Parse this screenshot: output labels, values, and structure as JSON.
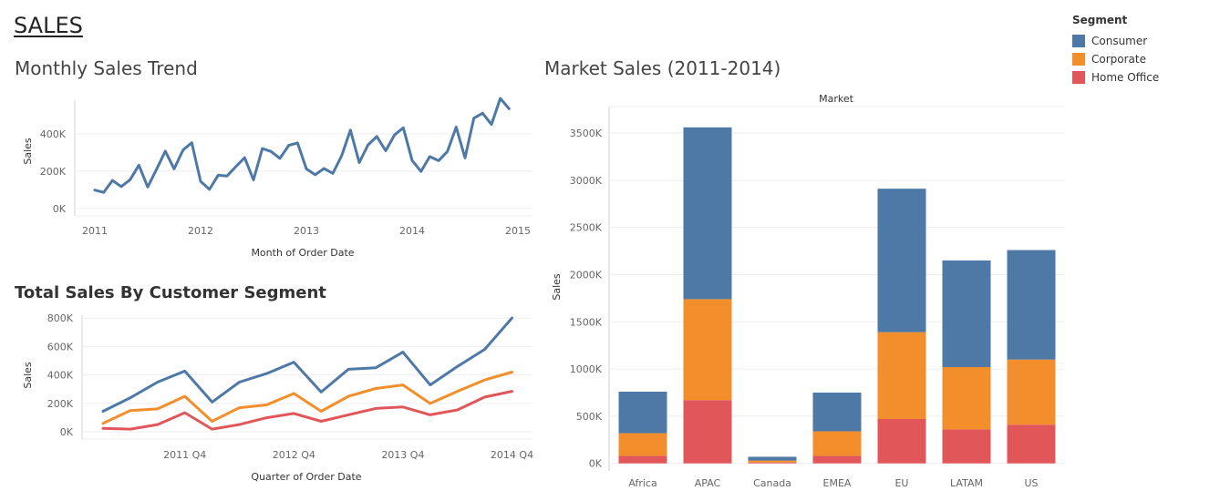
{
  "dashboard": {
    "title": "SALES"
  },
  "colors": {
    "consumer": "#4e79a7",
    "corporate": "#f28e2b",
    "home_office": "#e15759",
    "grid": "#ededed",
    "axis": "#d0d0d0"
  },
  "legend": {
    "title": "Segment",
    "items": [
      {
        "label": "Consumer",
        "color": "#4e79a7"
      },
      {
        "label": "Corporate",
        "color": "#f28e2b"
      },
      {
        "label": "Home Office",
        "color": "#e15759"
      }
    ]
  },
  "titles": {
    "monthly": "Monthly Sales Trend",
    "segment": "Total Sales By Customer Segment",
    "market": "Market Sales (2011-2014)"
  },
  "chart_data": [
    {
      "type": "line",
      "title": "Monthly Sales Trend",
      "xlabel": "Month of Order Date",
      "ylabel": "Sales",
      "x_ticks": [
        "2011",
        "2012",
        "2013",
        "2014",
        "2015"
      ],
      "y_ticks": [
        "0K",
        "200K",
        "400K"
      ],
      "y_tick_values": [
        0,
        200,
        400
      ],
      "ylim": [
        -40,
        580
      ],
      "x_range": [
        0,
        48
      ],
      "series": [
        {
          "values": [
            98,
            86,
            150,
            117,
            154,
            232,
            115,
            210,
            307,
            212,
            313,
            352,
            145,
            102,
            178,
            174,
            224,
            272,
            153,
            321,
            305,
            268,
            338,
            351,
            212,
            180,
            214,
            188,
            282,
            420,
            246,
            341,
            385,
            309,
            394,
            432,
            257,
            198,
            278,
            256,
            305,
            436,
            271,
            484,
            510,
            450,
            590,
            534
          ]
        }
      ]
    },
    {
      "type": "line",
      "title": "Total Sales By Customer Segment",
      "xlabel": "Quarter of Order Date",
      "ylabel": "Sales",
      "x_ticks": [
        "2011 Q4",
        "2012 Q4",
        "2013 Q4",
        "2014 Q4"
      ],
      "y_ticks": [
        "0K",
        "200K",
        "400K",
        "600K",
        "800K"
      ],
      "y_tick_values": [
        0,
        200,
        400,
        600,
        800
      ],
      "ylim": [
        -50,
        820
      ],
      "series": [
        {
          "name": "Consumer",
          "values": [
            145,
            240,
            350,
            427,
            210,
            350,
            410,
            490,
            280,
            440,
            450,
            560,
            330,
            460,
            580,
            800
          ]
        },
        {
          "name": "Corporate",
          "values": [
            60,
            150,
            162,
            250,
            75,
            170,
            190,
            270,
            145,
            250,
            305,
            330,
            200,
            285,
            365,
            420
          ]
        },
        {
          "name": "Home Office",
          "values": [
            25,
            20,
            52,
            135,
            20,
            52,
            100,
            130,
            75,
            120,
            165,
            175,
            120,
            155,
            245,
            285
          ]
        }
      ]
    },
    {
      "type": "bar",
      "stacked": true,
      "title": "Market Sales (2011-2014)",
      "header": "Market",
      "ylabel": "Sales",
      "categories": [
        "Africa",
        "APAC",
        "Canada",
        "EMEA",
        "EU",
        "LATAM",
        "US"
      ],
      "y_ticks": [
        "0K",
        "500K",
        "1000K",
        "1500K",
        "2000K",
        "2500K",
        "3000K",
        "3500K"
      ],
      "y_tick_values": [
        0,
        500,
        1000,
        1500,
        2000,
        2500,
        3000,
        3500
      ],
      "ylim": [
        -80,
        3780
      ],
      "series": [
        {
          "name": "Home Office",
          "values": [
            80,
            670,
            10,
            80,
            470,
            360,
            410
          ]
        },
        {
          "name": "Corporate",
          "values": [
            240,
            1070,
            20,
            260,
            920,
            660,
            690
          ]
        },
        {
          "name": "Consumer",
          "values": [
            440,
            1820,
            40,
            410,
            1520,
            1130,
            1160
          ]
        }
      ]
    }
  ]
}
